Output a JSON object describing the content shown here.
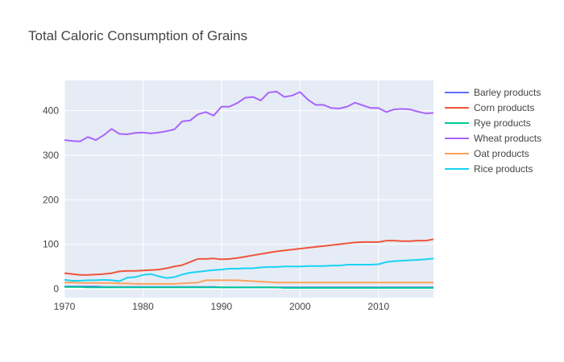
{
  "chart_data": {
    "type": "line",
    "title": "Total Caloric Consumption of Grains",
    "xlabel": "",
    "ylabel": "",
    "xlim": [
      1970,
      2017
    ],
    "ylim": [
      -20,
      468
    ],
    "x_ticks": [
      1970,
      1980,
      1990,
      2000,
      2010
    ],
    "y_ticks": [
      0,
      100,
      200,
      300,
      400
    ],
    "grid": true,
    "legend_position": "right",
    "x": [
      1970,
      1971,
      1972,
      1973,
      1974,
      1975,
      1976,
      1977,
      1978,
      1979,
      1980,
      1981,
      1982,
      1983,
      1984,
      1985,
      1986,
      1987,
      1988,
      1989,
      1990,
      1991,
      1992,
      1993,
      1994,
      1995,
      1996,
      1997,
      1998,
      1999,
      2000,
      2001,
      2002,
      2003,
      2004,
      2005,
      2006,
      2007,
      2008,
      2009,
      2010,
      2011,
      2012,
      2013,
      2014,
      2015,
      2016,
      2017
    ],
    "series": [
      {
        "name": "Barley products",
        "color": "#636efa",
        "values": [
          5,
          5,
          5,
          5,
          5,
          4,
          4,
          4,
          4,
          4,
          4,
          4,
          4,
          4,
          4,
          4,
          4,
          4,
          4,
          4,
          3,
          3,
          3,
          3,
          3,
          3,
          3,
          3,
          3,
          3,
          3,
          3,
          3,
          3,
          3,
          3,
          3,
          3,
          3,
          3,
          3,
          3,
          3,
          3,
          3,
          3,
          3,
          3
        ]
      },
      {
        "name": "Corn products",
        "color": "#ef553b",
        "values": [
          35,
          33,
          31,
          31,
          32,
          33,
          35,
          39,
          40,
          40,
          41,
          42,
          43,
          46,
          50,
          53,
          60,
          67,
          67,
          68,
          66,
          67,
          69,
          72,
          75,
          78,
          81,
          84,
          86,
          88,
          90,
          92,
          94,
          96,
          98,
          100,
          102,
          104,
          105,
          105,
          105,
          108,
          108,
          107,
          107,
          108,
          108,
          111
        ]
      },
      {
        "name": "Rye products",
        "color": "#00cc96",
        "values": [
          4,
          4,
          4,
          3,
          3,
          3,
          3,
          3,
          3,
          3,
          3,
          3,
          3,
          3,
          3,
          3,
          3,
          3,
          3,
          3,
          3,
          3,
          3,
          3,
          3,
          3,
          3,
          3,
          2,
          2,
          2,
          2,
          2,
          2,
          2,
          2,
          2,
          2,
          2,
          2,
          2,
          2,
          2,
          2,
          2,
          2,
          2,
          2
        ]
      },
      {
        "name": "Wheat products",
        "color": "#ab63fa",
        "values": [
          334,
          332,
          331,
          341,
          334,
          345,
          359,
          348,
          347,
          350,
          351,
          349,
          351,
          354,
          358,
          376,
          378,
          392,
          397,
          389,
          409,
          409,
          417,
          429,
          431,
          423,
          441,
          443,
          431,
          434,
          442,
          425,
          413,
          413,
          406,
          405,
          409,
          418,
          412,
          406,
          406,
          397,
          403,
          404,
          403,
          398,
          394,
          395
        ]
      },
      {
        "name": "Oat products",
        "color": "#ffa15a",
        "values": [
          14,
          14,
          13,
          13,
          13,
          13,
          13,
          12,
          12,
          11,
          11,
          11,
          11,
          11,
          11,
          12,
          13,
          14,
          19,
          19,
          19,
          19,
          19,
          18,
          17,
          16,
          15,
          14,
          14,
          14,
          14,
          14,
          14,
          14,
          14,
          14,
          14,
          14,
          14,
          14,
          14,
          14,
          14,
          14,
          14,
          14,
          14,
          14
        ]
      },
      {
        "name": "Rice products",
        "color": "#19d3f3",
        "values": [
          20,
          18,
          18,
          19,
          19,
          20,
          19,
          17,
          25,
          26,
          31,
          33,
          28,
          24,
          26,
          32,
          36,
          38,
          40,
          42,
          43,
          45,
          45,
          46,
          46,
          48,
          49,
          49,
          50,
          50,
          50,
          51,
          51,
          51,
          52,
          52,
          54,
          54,
          54,
          54,
          55,
          60,
          62,
          63,
          64,
          65,
          66,
          68
        ]
      }
    ]
  }
}
